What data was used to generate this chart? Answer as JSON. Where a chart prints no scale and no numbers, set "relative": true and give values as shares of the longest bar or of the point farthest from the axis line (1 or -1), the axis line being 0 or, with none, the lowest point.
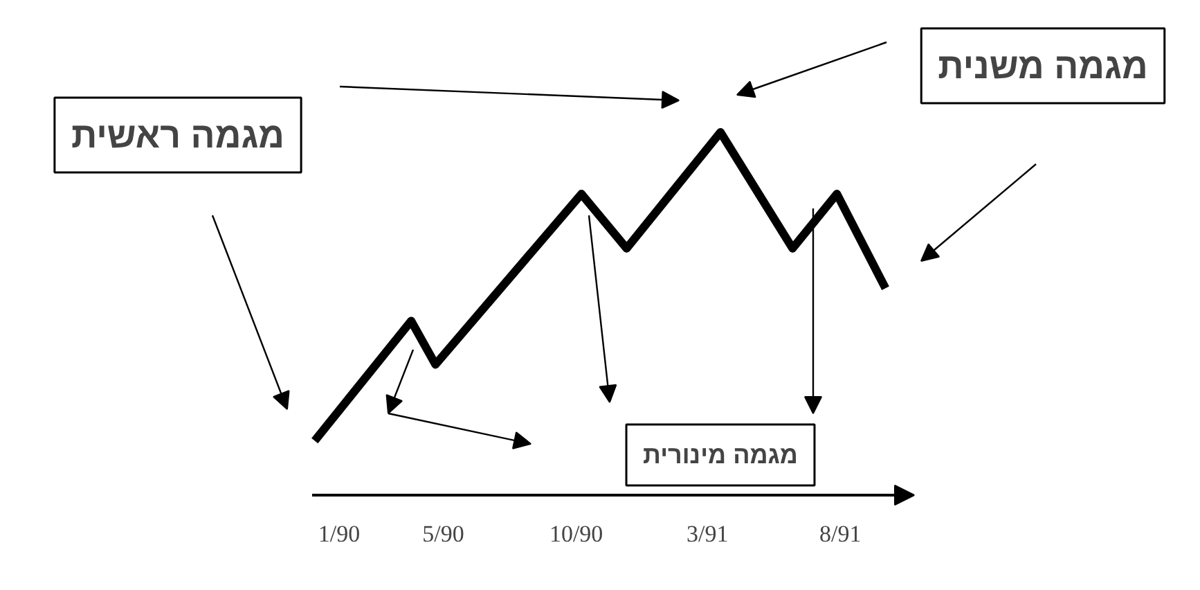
{
  "chart_data": {
    "type": "line",
    "relative": true,
    "x": [
      "1989-12-04",
      "1990-03-25",
      "1990-04-22",
      "1990-10-07",
      "1990-11-28",
      "1991-03-16",
      "1991-06-07",
      "1991-07-28",
      "1991-09-22"
    ],
    "series": [
      {
        "color": "#000000",
        "values": [
          0.15,
          0.48,
          0.36,
          0.83,
          0.68,
          1,
          0.68,
          0.83,
          0.57
        ]
      }
    ],
    "xlim": [
      "1989-12-01",
      "1991-10-25"
    ],
    "xticks": [
      {
        "value": "1990-01",
        "label": "1/90"
      },
      {
        "value": "1990-05",
        "label": "5/90"
      },
      {
        "value": "1990-10",
        "label": "10/90"
      },
      {
        "value": "1991-03",
        "label": "3/91"
      },
      {
        "value": "1991-08",
        "label": "8/91"
      }
    ],
    "tick_labels": "x",
    "grid": false,
    "marker": "none",
    "line_style": "solid",
    "annotations": [
      "מגמה משנית",
      "מגמה ראשית",
      "מגמה מינורית"
    ]
  }
}
